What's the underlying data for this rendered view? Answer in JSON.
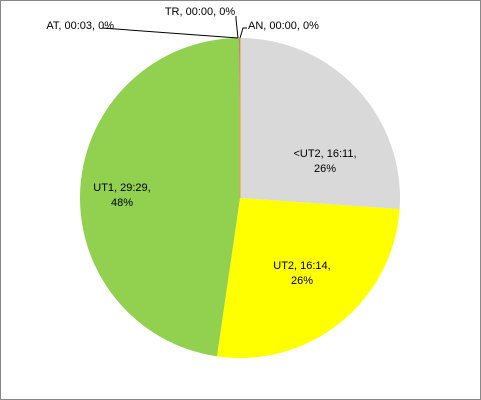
{
  "chart_data": {
    "type": "pie",
    "labels": [
      "AN, 00:00, 0%",
      "<UT2, 16:11, 26%",
      "UT2, 16:14, 26%",
      "UT1, 29:29, 48%",
      "AT, 00:03, 0%",
      "TR, 00:00, 0%"
    ],
    "values": [
      0,
      26.1,
      26.2,
      47.6,
      0.1,
      0
    ],
    "colors": [
      "#4bacc6",
      "#d9d9d9",
      "#ffff00",
      "#92d050",
      "#8064a2",
      "#f79646"
    ]
  }
}
